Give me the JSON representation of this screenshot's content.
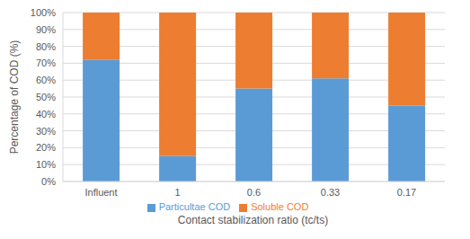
{
  "chart_data": {
    "type": "bar",
    "stacked": true,
    "grid": true,
    "legend": "bottom",
    "x_label": "Contact stabilization ratio (tc/ts)",
    "y_label": "Percentage of COD (%)",
    "categories": [
      "Influent",
      "1",
      "0.6",
      "0.33",
      "0.17"
    ],
    "series": [
      {
        "name": "Particultae COD",
        "color": "#5b9bd5",
        "values": [
          72,
          15,
          55,
          61,
          45
        ]
      },
      {
        "name": "Soluble COD",
        "color": "#ed7d31",
        "values": [
          28,
          85,
          45,
          39,
          55
        ]
      }
    ],
    "ylim": [
      0,
      100
    ],
    "yticks": [
      {
        "value": 0,
        "label": "0%"
      },
      {
        "value": 10,
        "label": "10%"
      },
      {
        "value": 20,
        "label": "20%"
      },
      {
        "value": 30,
        "label": "30%"
      },
      {
        "value": 40,
        "label": "40%"
      },
      {
        "value": 50,
        "label": "50%"
      },
      {
        "value": 60,
        "label": "60%"
      },
      {
        "value": 70,
        "label": "70%"
      },
      {
        "value": 80,
        "label": "80%"
      },
      {
        "value": 90,
        "label": "90%"
      },
      {
        "value": 100,
        "label": "100%"
      }
    ]
  }
}
